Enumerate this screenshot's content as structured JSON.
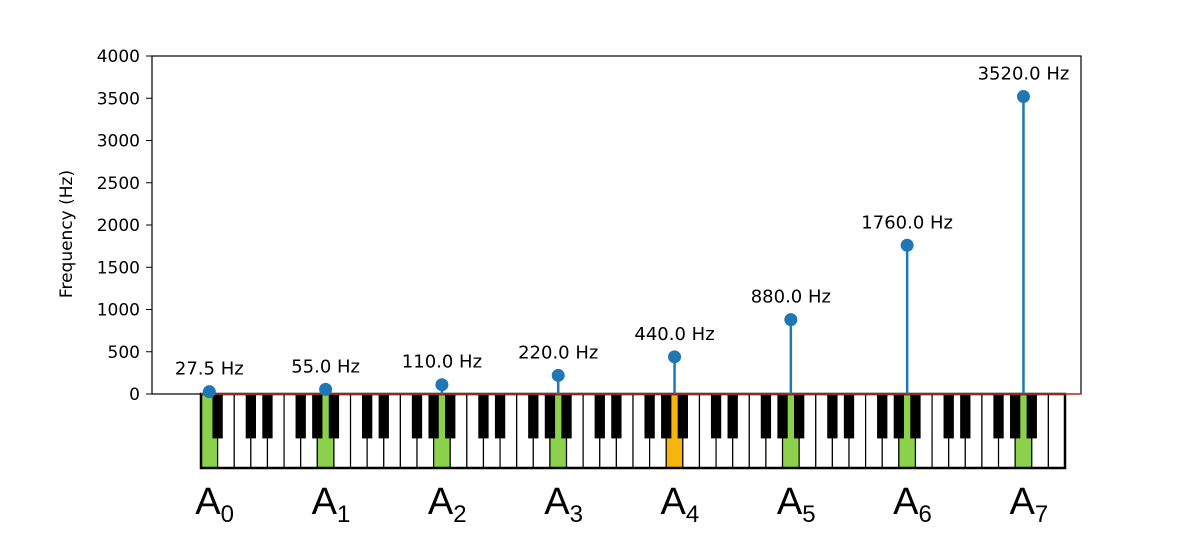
{
  "colors": {
    "series": "#1f77b4",
    "highlight_green": "#8cd14b",
    "highlight_orange": "#f6b50c",
    "baseline": "#c0392b",
    "white_key": "#ffffff",
    "black_key": "#000000"
  },
  "chart_data": {
    "type": "stem",
    "title": "",
    "xlabel": "",
    "ylabel": "Frequency (Hz)",
    "ylim": [
      0,
      4000
    ],
    "yticks": [
      "0",
      "500",
      "1000",
      "1500",
      "2000",
      "2500",
      "3000",
      "3500",
      "4000"
    ],
    "ytick_values": [
      0,
      500,
      1000,
      1500,
      2000,
      2500,
      3000,
      3500,
      4000
    ],
    "grid": false,
    "categories": [
      {
        "note": "A",
        "octave": "0"
      },
      {
        "note": "A",
        "octave": "1"
      },
      {
        "note": "A",
        "octave": "2"
      },
      {
        "note": "A",
        "octave": "3"
      },
      {
        "note": "A",
        "octave": "4"
      },
      {
        "note": "A",
        "octave": "5"
      },
      {
        "note": "A",
        "octave": "6"
      },
      {
        "note": "A",
        "octave": "7"
      }
    ],
    "values": [
      27.5,
      55.0,
      110.0,
      220.0,
      440.0,
      880.0,
      1760.0,
      3520.0
    ],
    "data_labels": [
      "27.5 Hz",
      "55.0 Hz",
      "110.0 Hz",
      "220.0 Hz",
      "440.0 Hz",
      "880.0 Hz",
      "1760.0 Hz",
      "3520.0 Hz"
    ],
    "highlighted_index": 4,
    "keyboard": {
      "white_key_count": 52,
      "highlighted_white_keys": [
        0,
        7,
        14,
        21,
        28,
        35,
        42,
        49
      ]
    }
  }
}
